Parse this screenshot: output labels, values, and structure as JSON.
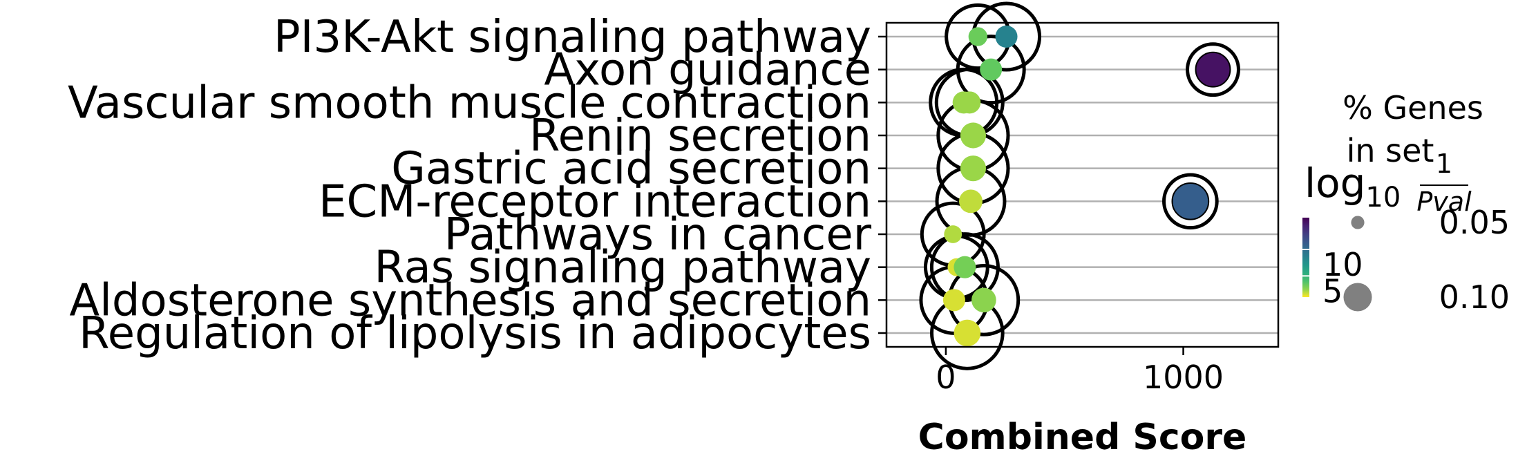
{
  "chart_data": {
    "type": "scatter",
    "title": "",
    "xlabel": "Combined Score",
    "ylabel": "",
    "xlim": [
      -250,
      1400
    ],
    "xticks": [
      {
        "value": 0,
        "label": "0"
      },
      {
        "value": 1000,
        "label": "1000"
      }
    ],
    "grid": "horizontal",
    "categories": [
      "PI3K-Akt signaling pathway",
      "Axon guidance",
      "Vascular smooth muscle contraction",
      "Renin secretion",
      "Gastric acid secretion",
      "ECM-receptor interaction",
      "Pathways in cancer",
      "Ras signaling pathway",
      "Aldosterone synthesis and secretion",
      "Regulation of lipolysis in adipocytes"
    ],
    "points": [
      {
        "category": "PI3K-Akt signaling pathway",
        "x": 135,
        "log10_inv_p": 3.0,
        "gene_pct": 0.02,
        "highlight": false
      },
      {
        "category": "PI3K-Akt signaling pathway",
        "x": 255,
        "log10_inv_p": 8.5,
        "gene_pct": 0.04,
        "highlight": false
      },
      {
        "category": "Axon guidance",
        "x": 190,
        "log10_inv_p": 3.3,
        "gene_pct": 0.04,
        "highlight": false
      },
      {
        "category": "Axon guidance",
        "x": 1125,
        "log10_inv_p": 15.2,
        "gene_pct": 0.18,
        "highlight": true
      },
      {
        "category": "Vascular smooth muscle contraction",
        "x": 75,
        "log10_inv_p": 2.3,
        "gene_pct": 0.04,
        "highlight": false
      },
      {
        "category": "Vascular smooth muscle contraction",
        "x": 100,
        "log10_inv_p": 2.3,
        "gene_pct": 0.04,
        "highlight": false
      },
      {
        "category": "Renin secretion",
        "x": 115,
        "log10_inv_p": 2.3,
        "gene_pct": 0.07,
        "highlight": false
      },
      {
        "category": "Gastric acid secretion",
        "x": 115,
        "log10_inv_p": 2.3,
        "gene_pct": 0.07,
        "highlight": false
      },
      {
        "category": "ECM-receptor interaction",
        "x": 105,
        "log10_inv_p": 1.8,
        "gene_pct": 0.05,
        "highlight": false
      },
      {
        "category": "ECM-receptor interaction",
        "x": 1030,
        "log10_inv_p": 11.0,
        "gene_pct": 0.21,
        "highlight": true
      },
      {
        "category": "Pathways in cancer",
        "x": 30,
        "log10_inv_p": 2.0,
        "gene_pct": 0.015,
        "highlight": false
      },
      {
        "category": "Ras signaling pathway",
        "x": 45,
        "log10_inv_p": 1.5,
        "gene_pct": 0.015,
        "highlight": false
      },
      {
        "category": "Ras signaling pathway",
        "x": 80,
        "log10_inv_p": 2.8,
        "gene_pct": 0.04,
        "highlight": false
      },
      {
        "category": "Aldosterone synthesis and secretion",
        "x": 35,
        "log10_inv_p": 1.5,
        "gene_pct": 0.04,
        "highlight": false
      },
      {
        "category": "Aldosterone synthesis and secretion",
        "x": 160,
        "log10_inv_p": 2.5,
        "gene_pct": 0.06,
        "highlight": false
      },
      {
        "category": "Regulation of lipolysis in adipocytes",
        "x": 90,
        "log10_inv_p": 1.5,
        "gene_pct": 0.08,
        "highlight": false
      }
    ],
    "highlight_halo": "white circles with black outline behind points",
    "colorbar": {
      "title": "log",
      "title_sub": "10",
      "title_frac_num": "1",
      "title_frac_den": "Pval",
      "ticks": [
        {
          "value": 5,
          "label": "5"
        },
        {
          "value": 10,
          "label": "10"
        }
      ],
      "range": [
        1,
        16
      ],
      "colormap": "viridis",
      "placement": "right"
    },
    "size_legend": {
      "title_line1": "% Genes",
      "title_line2": "in set",
      "entries": [
        {
          "value": 0.05,
          "label": "0.05"
        },
        {
          "value": 0.1,
          "label": "0.10"
        }
      ],
      "marker_color": "#808080",
      "placement": "right"
    },
    "colors": {
      "grid": "#b0b0b0",
      "axis": "#000000",
      "highlight_edge": "#000000",
      "halo_fill": "#ffffff"
    }
  }
}
